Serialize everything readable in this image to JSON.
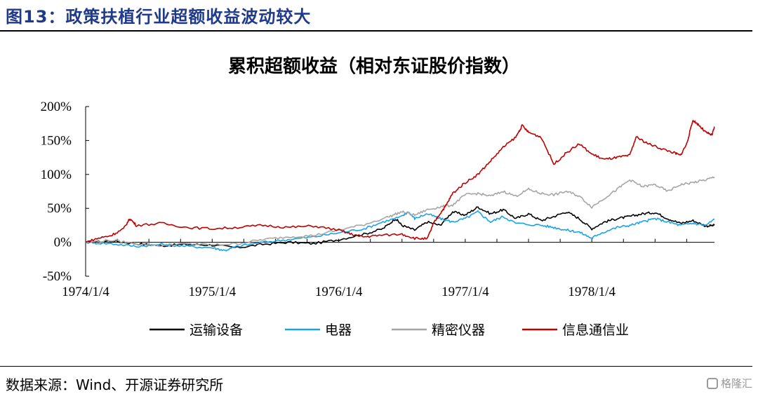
{
  "header": {
    "title": "图13：政策扶植行业超额收益波动较大"
  },
  "source": "数据来源：Wind、开源证券研究所",
  "watermark": "格隆汇",
  "chart_data": {
    "type": "line",
    "title": "累积超额收益（相对东证股价指数）",
    "ylim": [
      -0.5,
      2.0
    ],
    "y_ticks": [
      {
        "value": 2.0,
        "label": "200%"
      },
      {
        "value": 1.5,
        "label": "150%"
      },
      {
        "value": 1.0,
        "label": "100%"
      },
      {
        "value": 0.5,
        "label": "50%"
      },
      {
        "value": 0.0,
        "label": "0%"
      },
      {
        "value": -0.5,
        "label": "-50%"
      }
    ],
    "x_ticks": [
      "1974/1/4",
      "1975/1/4",
      "1976/1/4",
      "1977/1/4",
      "1978/1/4"
    ],
    "xlim_years": [
      1974.0,
      1978.97
    ],
    "legend_position": "bottom",
    "grid": false,
    "series": [
      {
        "name": "运输设备",
        "color": "#000000",
        "points": [
          [
            1974.0,
            0.0
          ],
          [
            1974.2,
            0.02
          ],
          [
            1974.4,
            -0.02
          ],
          [
            1974.6,
            -0.05
          ],
          [
            1974.8,
            -0.03
          ],
          [
            1975.0,
            -0.04
          ],
          [
            1975.2,
            -0.08
          ],
          [
            1975.4,
            -0.03
          ],
          [
            1975.6,
            0.0
          ],
          [
            1975.8,
            -0.02
          ],
          [
            1976.0,
            0.04
          ],
          [
            1976.2,
            0.12
          ],
          [
            1976.35,
            0.2
          ],
          [
            1976.45,
            0.35
          ],
          [
            1976.5,
            0.25
          ],
          [
            1976.6,
            0.18
          ],
          [
            1976.7,
            0.3
          ],
          [
            1976.8,
            0.25
          ],
          [
            1976.9,
            0.45
          ],
          [
            1977.0,
            0.4
          ],
          [
            1977.1,
            0.52
          ],
          [
            1977.2,
            0.42
          ],
          [
            1977.3,
            0.48
          ],
          [
            1977.4,
            0.35
          ],
          [
            1977.5,
            0.42
          ],
          [
            1977.6,
            0.32
          ],
          [
            1977.7,
            0.38
          ],
          [
            1977.8,
            0.45
          ],
          [
            1977.9,
            0.35
          ],
          [
            1978.0,
            0.2
          ],
          [
            1978.1,
            0.3
          ],
          [
            1978.2,
            0.35
          ],
          [
            1978.3,
            0.38
          ],
          [
            1978.4,
            0.42
          ],
          [
            1978.5,
            0.44
          ],
          [
            1978.6,
            0.35
          ],
          [
            1978.7,
            0.28
          ],
          [
            1978.8,
            0.32
          ],
          [
            1978.9,
            0.24
          ],
          [
            1978.97,
            0.25
          ]
        ]
      },
      {
        "name": "电器",
        "color": "#1aa3e8",
        "points": [
          [
            1974.0,
            0.0
          ],
          [
            1974.2,
            -0.02
          ],
          [
            1974.4,
            -0.06
          ],
          [
            1974.6,
            -0.03
          ],
          [
            1974.8,
            -0.06
          ],
          [
            1975.0,
            -0.08
          ],
          [
            1975.1,
            -0.12
          ],
          [
            1975.2,
            -0.06
          ],
          [
            1975.4,
            0.0
          ],
          [
            1975.6,
            0.04
          ],
          [
            1975.8,
            0.08
          ],
          [
            1976.0,
            0.14
          ],
          [
            1976.2,
            0.2
          ],
          [
            1976.35,
            0.3
          ],
          [
            1976.5,
            0.38
          ],
          [
            1976.55,
            0.45
          ],
          [
            1976.6,
            0.35
          ],
          [
            1976.7,
            0.42
          ],
          [
            1976.8,
            0.35
          ],
          [
            1976.9,
            0.3
          ],
          [
            1977.0,
            0.35
          ],
          [
            1977.1,
            0.45
          ],
          [
            1977.2,
            0.3
          ],
          [
            1977.3,
            0.38
          ],
          [
            1977.4,
            0.28
          ],
          [
            1977.6,
            0.25
          ],
          [
            1977.7,
            0.22
          ],
          [
            1977.8,
            0.18
          ],
          [
            1977.9,
            0.15
          ],
          [
            1978.0,
            0.06
          ],
          [
            1978.05,
            0.12
          ],
          [
            1978.2,
            0.22
          ],
          [
            1978.3,
            0.25
          ],
          [
            1978.4,
            0.3
          ],
          [
            1978.5,
            0.35
          ],
          [
            1978.6,
            0.3
          ],
          [
            1978.7,
            0.25
          ],
          [
            1978.8,
            0.28
          ],
          [
            1978.9,
            0.25
          ],
          [
            1978.97,
            0.34
          ]
        ]
      },
      {
        "name": "精密仪器",
        "color": "#a6a6a6",
        "points": [
          [
            1974.0,
            0.0
          ],
          [
            1974.2,
            0.03
          ],
          [
            1974.4,
            -0.02
          ],
          [
            1974.6,
            -0.05
          ],
          [
            1974.8,
            -0.02
          ],
          [
            1975.0,
            -0.04
          ],
          [
            1975.2,
            -0.02
          ],
          [
            1975.4,
            0.04
          ],
          [
            1975.6,
            0.08
          ],
          [
            1975.8,
            0.1
          ],
          [
            1976.0,
            0.18
          ],
          [
            1976.2,
            0.26
          ],
          [
            1976.4,
            0.38
          ],
          [
            1976.5,
            0.45
          ],
          [
            1976.6,
            0.4
          ],
          [
            1976.7,
            0.48
          ],
          [
            1976.8,
            0.52
          ],
          [
            1976.9,
            0.55
          ],
          [
            1977.0,
            0.7
          ],
          [
            1977.1,
            0.72
          ],
          [
            1977.2,
            0.68
          ],
          [
            1977.3,
            0.75
          ],
          [
            1977.4,
            0.68
          ],
          [
            1977.5,
            0.78
          ],
          [
            1977.6,
            0.72
          ],
          [
            1977.7,
            0.7
          ],
          [
            1977.8,
            0.75
          ],
          [
            1977.9,
            0.68
          ],
          [
            1978.0,
            0.52
          ],
          [
            1978.1,
            0.65
          ],
          [
            1978.2,
            0.78
          ],
          [
            1978.3,
            0.92
          ],
          [
            1978.4,
            0.82
          ],
          [
            1978.5,
            0.85
          ],
          [
            1978.6,
            0.75
          ],
          [
            1978.7,
            0.85
          ],
          [
            1978.8,
            0.88
          ],
          [
            1978.9,
            0.92
          ],
          [
            1978.97,
            0.96
          ]
        ]
      },
      {
        "name": "信息通信业",
        "color": "#c00000",
        "points": [
          [
            1974.0,
            0.0
          ],
          [
            1974.1,
            0.06
          ],
          [
            1974.2,
            0.1
          ],
          [
            1974.3,
            0.2
          ],
          [
            1974.35,
            0.35
          ],
          [
            1974.4,
            0.25
          ],
          [
            1974.6,
            0.28
          ],
          [
            1974.8,
            0.22
          ],
          [
            1975.0,
            0.2
          ],
          [
            1975.2,
            0.22
          ],
          [
            1975.4,
            0.25
          ],
          [
            1975.6,
            0.22
          ],
          [
            1975.8,
            0.24
          ],
          [
            1976.0,
            0.18
          ],
          [
            1976.1,
            0.12
          ],
          [
            1976.2,
            0.08
          ],
          [
            1976.3,
            0.1
          ],
          [
            1976.5,
            0.12
          ],
          [
            1976.6,
            0.06
          ],
          [
            1976.7,
            0.05
          ],
          [
            1976.75,
            0.28
          ],
          [
            1976.8,
            0.42
          ],
          [
            1976.85,
            0.55
          ],
          [
            1976.9,
            0.72
          ],
          [
            1977.0,
            0.88
          ],
          [
            1977.1,
            1.0
          ],
          [
            1977.2,
            1.2
          ],
          [
            1977.3,
            1.4
          ],
          [
            1977.4,
            1.55
          ],
          [
            1977.45,
            1.72
          ],
          [
            1977.5,
            1.62
          ],
          [
            1977.6,
            1.55
          ],
          [
            1977.7,
            1.15
          ],
          [
            1977.8,
            1.32
          ],
          [
            1977.9,
            1.45
          ],
          [
            1978.0,
            1.3
          ],
          [
            1978.1,
            1.22
          ],
          [
            1978.2,
            1.25
          ],
          [
            1978.3,
            1.28
          ],
          [
            1978.35,
            1.55
          ],
          [
            1978.45,
            1.45
          ],
          [
            1978.55,
            1.38
          ],
          [
            1978.65,
            1.32
          ],
          [
            1978.7,
            1.28
          ],
          [
            1978.75,
            1.45
          ],
          [
            1978.8,
            1.8
          ],
          [
            1978.85,
            1.72
          ],
          [
            1978.9,
            1.62
          ],
          [
            1978.95,
            1.58
          ],
          [
            1978.97,
            1.7
          ]
        ]
      }
    ]
  }
}
